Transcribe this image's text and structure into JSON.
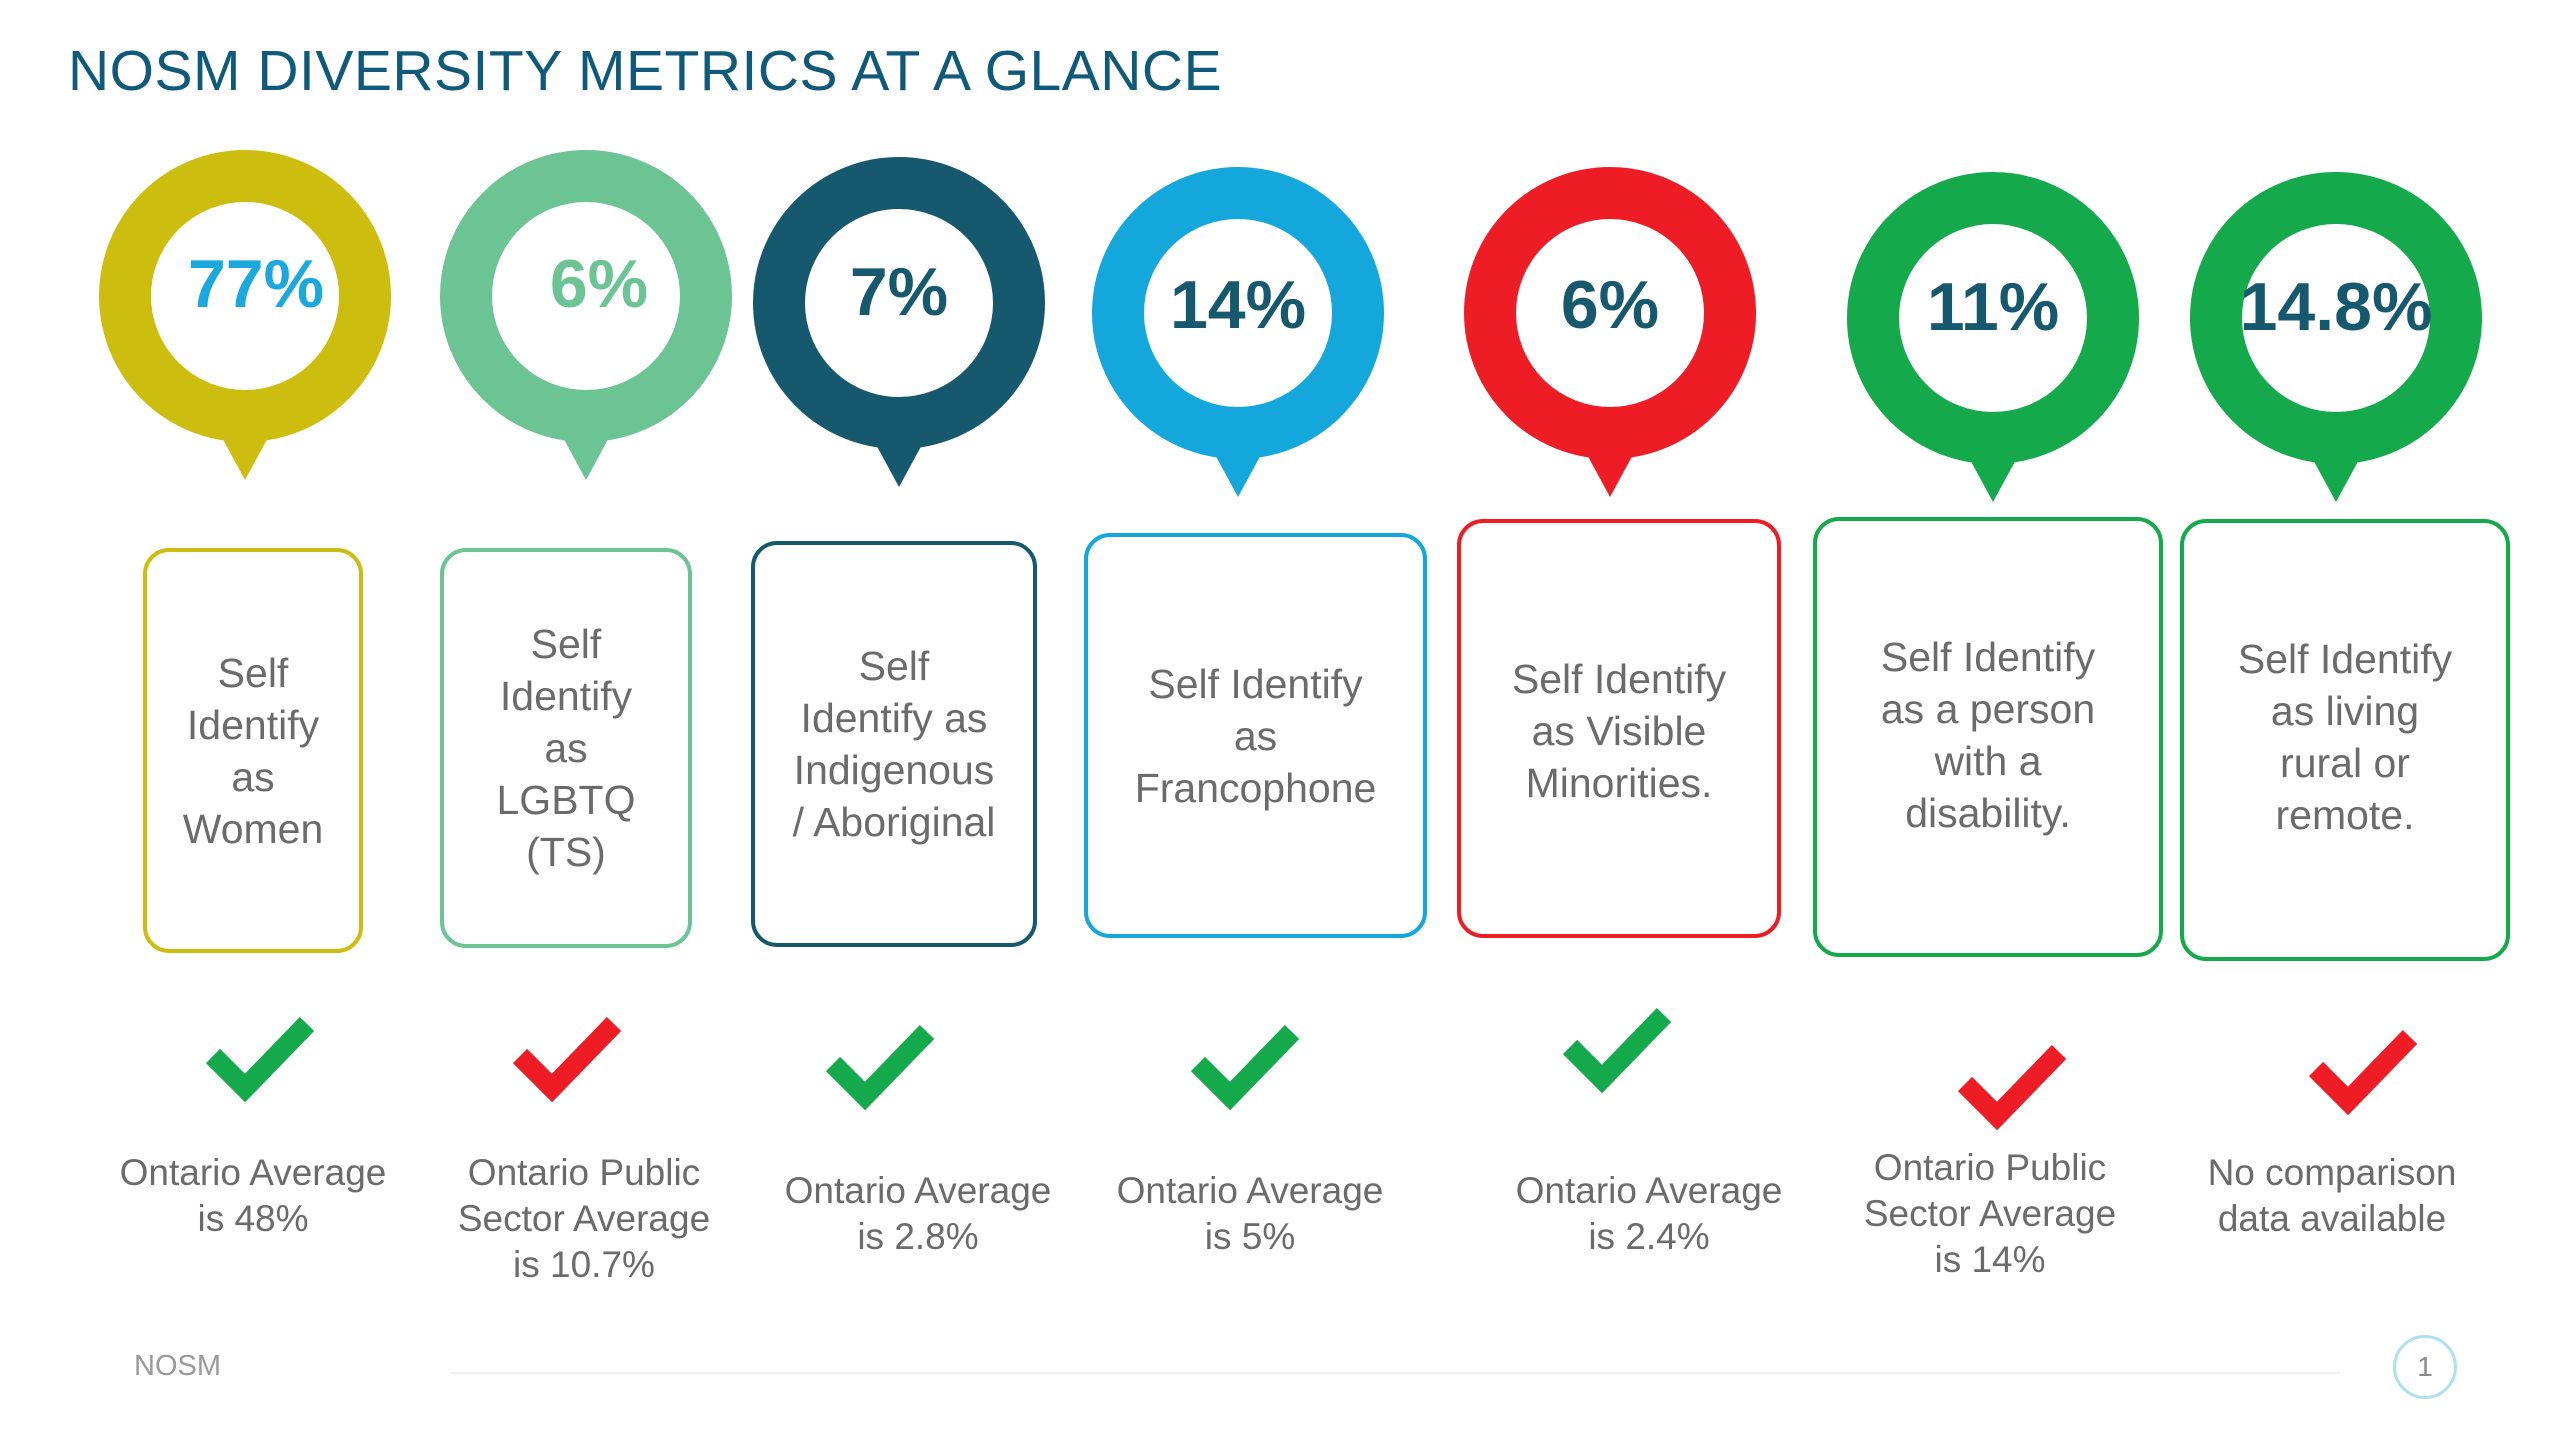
{
  "title": "NOSM DIVERSITY METRICS AT A GLANCE",
  "metrics": [
    {
      "value": "77%",
      "value_color": "#1ba8dc",
      "ring_color": "#cdbd0f",
      "label": "Self\nIdentify\nas\nWomen",
      "comparison": "Ontario Average\nis 48%",
      "check_status": "favorable",
      "check_color": "#14a94a"
    },
    {
      "value": "6%",
      "value_color": "#6cc494",
      "ring_color": "#6cc494",
      "label": "Self\nIdentify\nas\nLGBTQ\n(TS)",
      "comparison": "Ontario Public\nSector Average\nis 10.7%",
      "check_status": "unfavorable",
      "check_color": "#ee1c25"
    },
    {
      "value": "7%",
      "value_color": "#16586d",
      "ring_color": "#16586d",
      "label": "Self\nIdentify as\nIndigenous\n/ Aboriginal",
      "comparison": "Ontario Average\nis 2.8%",
      "check_status": "favorable",
      "check_color": "#14a94a"
    },
    {
      "value": "14%",
      "value_color": "#16586d",
      "ring_color": "#14a7dc",
      "label": "Self Identify\nas\nFrancophone",
      "comparison": "Ontario Average\nis 5%",
      "check_status": "favorable",
      "check_color": "#14a94a"
    },
    {
      "value": "6%",
      "value_color": "#16586d",
      "ring_color": "#ee1c25",
      "label": "Self Identify\nas Visible\nMinorities.",
      "comparison": "Ontario Average\nis 2.4%",
      "check_status": "favorable",
      "check_color": "#14a94a"
    },
    {
      "value": "11%",
      "value_color": "#16586d",
      "ring_color": "#14a94a",
      "label": "Self Identify\nas a person\nwith a\ndisability.",
      "comparison": "Ontario Public\nSector Average\nis 14%",
      "check_status": "unfavorable",
      "check_color": "#ee1c25"
    },
    {
      "value": "14.8%",
      "value_color": "#16586d",
      "ring_color": "#14a94a",
      "label": "Self Identify\nas living\nrural or\nremote.",
      "comparison": "No comparison\ndata available",
      "check_status": "unfavorable",
      "check_color": "#ee1c25"
    }
  ],
  "footer": {
    "brand": "NOSM",
    "page_number": "1"
  }
}
